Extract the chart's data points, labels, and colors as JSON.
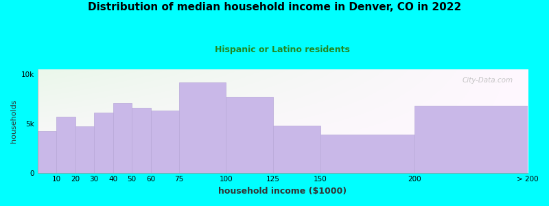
{
  "title": "Distribution of median household income in Denver, CO in 2022",
  "subtitle": "Hispanic or Latino residents",
  "xlabel": "household income ($1000)",
  "ylabel": "households",
  "categories": [
    "10",
    "20",
    "30",
    "40",
    "50",
    "60",
    "75",
    "100",
    "125",
    "150",
    "200",
    "> 200"
  ],
  "bin_lefts": [
    0,
    10,
    20,
    30,
    40,
    50,
    60,
    75,
    100,
    125,
    150,
    200
  ],
  "bin_widths": [
    10,
    10,
    10,
    10,
    10,
    10,
    15,
    25,
    25,
    25,
    50,
    60
  ],
  "values": [
    4200,
    5700,
    4700,
    6100,
    7100,
    6600,
    6300,
    9200,
    7700,
    4800,
    3900,
    6800
  ],
  "bar_color": "#c9b8e8",
  "bar_edge_color": "#b8a8d8",
  "background_color": "#00ffff",
  "title_fontsize": 11,
  "subtitle_fontsize": 9,
  "subtitle_color": "#228822",
  "xlabel_fontsize": 9,
  "ylabel_fontsize": 8,
  "tick_fontsize": 7.5,
  "ytick_labels": [
    "0",
    "5k",
    "10k"
  ],
  "ytick_values": [
    0,
    5000,
    10000
  ],
  "ylim": [
    0,
    10500
  ],
  "watermark_text": "City-Data.com"
}
